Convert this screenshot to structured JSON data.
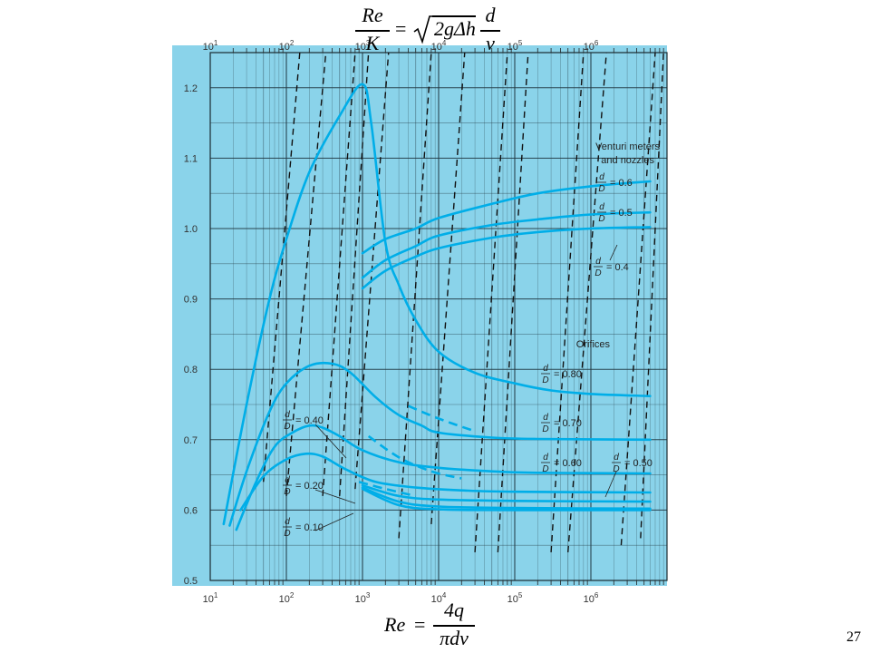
{
  "header_equation": {
    "lhs_num": "Re",
    "lhs_den": "K",
    "equals": "=",
    "sqrt_arg": "2gΔh",
    "rhs_num": "d",
    "rhs_den": "ν"
  },
  "footer_equation": {
    "lhs": "Re",
    "equals": "=",
    "num": "4q",
    "den": "πdν"
  },
  "slide_number": "27",
  "chart_data": {
    "type": "line",
    "x_scale": "log",
    "xlim": [
      10,
      10000000
    ],
    "ylim": [
      0.5,
      1.25
    ],
    "grid": true,
    "background_color": "#8ad3ea",
    "curve_color": "#00aee8",
    "bottom_axis_ticks": [
      {
        "base": "10",
        "exp": "1"
      },
      {
        "base": "10",
        "exp": "2"
      },
      {
        "base": "10",
        "exp": "3"
      },
      {
        "base": "10",
        "exp": "4"
      },
      {
        "base": "10",
        "exp": "5"
      },
      {
        "base": "10",
        "exp": "6"
      }
    ],
    "top_axis_ticks": [
      {
        "base": "10",
        "exp": "1"
      },
      {
        "base": "10",
        "exp": "2"
      },
      {
        "base": "10",
        "exp": "3"
      },
      {
        "base": "10",
        "exp": "4"
      },
      {
        "base": "10",
        "exp": "5"
      },
      {
        "base": "10",
        "exp": "6"
      }
    ],
    "y_ticks": [
      "0.5",
      "0.6",
      "0.7",
      "0.8",
      "0.9",
      "1.0",
      "1.1",
      "1.2"
    ],
    "annotations": {
      "venturi_title_line1": "Venturi meters",
      "venturi_title_line2": "and nozzles",
      "orifices_title": "Orifices",
      "ratio_d": "d",
      "ratio_D": "D"
    },
    "series": [
      {
        "name": "Venturi d/D = 0.6",
        "label_value": "= 0.6",
        "group": "venturi",
        "points": [
          [
            1000,
            0.965
          ],
          [
            2000,
            0.985
          ],
          [
            5000,
            1.0
          ],
          [
            10000,
            1.015
          ],
          [
            50000,
            1.035
          ],
          [
            200000,
            1.05
          ],
          [
            1000000,
            1.06
          ],
          [
            6000000,
            1.067
          ]
        ]
      },
      {
        "name": "Venturi d/D = 0.5",
        "label_value": "= 0.5",
        "group": "venturi",
        "points": [
          [
            1000,
            0.93
          ],
          [
            2000,
            0.955
          ],
          [
            5000,
            0.975
          ],
          [
            10000,
            0.99
          ],
          [
            50000,
            1.005
          ],
          [
            200000,
            1.013
          ],
          [
            1000000,
            1.02
          ],
          [
            6000000,
            1.023
          ]
        ]
      },
      {
        "name": "Venturi d/D = 0.4",
        "label_value": "= 0.4",
        "group": "venturi",
        "points": [
          [
            1000,
            0.915
          ],
          [
            2000,
            0.94
          ],
          [
            5000,
            0.96
          ],
          [
            10000,
            0.972
          ],
          [
            50000,
            0.987
          ],
          [
            200000,
            0.995
          ],
          [
            1000000,
            1.0
          ],
          [
            6000000,
            1.002
          ]
        ]
      },
      {
        "name": "Orifice d/D = 0.80",
        "label_value": "= 0.80",
        "group": "orifice",
        "points": [
          [
            15,
            0.58
          ],
          [
            30,
            0.75
          ],
          [
            60,
            0.9
          ],
          [
            100,
            0.985
          ],
          [
            200,
            1.08
          ],
          [
            500,
            1.16
          ],
          [
            1000,
            1.205
          ],
          [
            1300,
            1.15
          ],
          [
            2000,
            0.98
          ],
          [
            3000,
            0.92
          ],
          [
            5000,
            0.87
          ],
          [
            10000,
            0.825
          ],
          [
            30000,
            0.795
          ],
          [
            100000,
            0.78
          ],
          [
            300000,
            0.77
          ],
          [
            1000000,
            0.765
          ],
          [
            6000000,
            0.762
          ]
        ]
      },
      {
        "name": "Orifice d/D = 0.70",
        "label_value": "= 0.70",
        "group": "orifice",
        "points": [
          [
            18,
            0.578
          ],
          [
            30,
            0.655
          ],
          [
            60,
            0.74
          ],
          [
            100,
            0.78
          ],
          [
            200,
            0.805
          ],
          [
            400,
            0.808
          ],
          [
            700,
            0.795
          ],
          [
            1500,
            0.76
          ],
          [
            3000,
            0.735
          ],
          [
            6000,
            0.72
          ],
          [
            10000,
            0.71
          ],
          [
            50000,
            0.703
          ],
          [
            200000,
            0.701
          ],
          [
            6000000,
            0.7
          ]
        ]
      },
      {
        "name": "Orifice d/D = 0.60",
        "label_value": "= 0.60",
        "group": "orifice",
        "points": [
          [
            22,
            0.572
          ],
          [
            40,
            0.64
          ],
          [
            70,
            0.69
          ],
          [
            120,
            0.71
          ],
          [
            200,
            0.72
          ],
          [
            300,
            0.717
          ],
          [
            500,
            0.705
          ],
          [
            1000,
            0.685
          ],
          [
            3000,
            0.668
          ],
          [
            10000,
            0.66
          ],
          [
            50000,
            0.655
          ],
          [
            200000,
            0.653
          ],
          [
            6000000,
            0.652
          ]
        ]
      },
      {
        "name": "Orifice d/D = 0.50",
        "label_value": "= 0.50",
        "group": "orifice",
        "points": [
          [
            25,
            0.6
          ],
          [
            50,
            0.648
          ],
          [
            100,
            0.672
          ],
          [
            180,
            0.68
          ],
          [
            300,
            0.676
          ],
          [
            600,
            0.658
          ],
          [
            1500,
            0.64
          ],
          [
            5000,
            0.632
          ],
          [
            20000,
            0.628
          ],
          [
            100000,
            0.626
          ],
          [
            6000000,
            0.625
          ]
        ]
      },
      {
        "name": "Orifice d/D = 0.40",
        "label_value": "= 0.40",
        "group": "orifice",
        "points": [
          [
            1000,
            0.635
          ],
          [
            3000,
            0.62
          ],
          [
            10000,
            0.615
          ],
          [
            100000,
            0.613
          ],
          [
            6000000,
            0.612
          ]
        ]
      },
      {
        "name": "Orifice d/D = 0.20",
        "label_value": "= 0.20",
        "group": "orifice",
        "points": [
          [
            1000,
            0.632
          ],
          [
            3000,
            0.612
          ],
          [
            10000,
            0.605
          ],
          [
            100000,
            0.603
          ],
          [
            6000000,
            0.602
          ]
        ]
      },
      {
        "name": "Orifice d/D = 0.10",
        "label_value": "= 0.10",
        "group": "orifice",
        "points": [
          [
            1000,
            0.63
          ],
          [
            3000,
            0.607
          ],
          [
            10000,
            0.601
          ],
          [
            100000,
            0.6
          ],
          [
            6000000,
            0.6
          ]
        ]
      }
    ],
    "dashed_transitions": [
      {
        "name": "0.80 transition",
        "points": [
          [
            4000,
            0.748
          ],
          [
            10000,
            0.73
          ],
          [
            30000,
            0.712
          ]
        ]
      },
      {
        "name": "0.70 transition",
        "points": [
          [
            1200,
            0.705
          ],
          [
            3000,
            0.675
          ],
          [
            8000,
            0.655
          ],
          [
            20000,
            0.645
          ]
        ]
      },
      {
        "name": "0.60 transition",
        "points": [
          [
            900,
            0.64
          ],
          [
            2000,
            0.63
          ],
          [
            5000,
            0.62
          ]
        ]
      }
    ],
    "dashed_guide_lines": [
      [
        [
          50,
          0.64
        ],
        [
          150,
          1.25
        ]
      ],
      [
        [
          100,
          0.62
        ],
        [
          330,
          1.25
        ]
      ],
      [
        [
          300,
          0.62
        ],
        [
          800,
          1.25
        ]
      ],
      [
        [
          500,
          0.62
        ],
        [
          1200,
          1.25
        ]
      ],
      [
        [
          800,
          0.63
        ],
        [
          2200,
          1.25
        ]
      ],
      [
        [
          3000,
          0.56
        ],
        [
          8000,
          1.25
        ]
      ],
      [
        [
          8000,
          0.58
        ],
        [
          22000,
          1.25
        ]
      ],
      [
        [
          30000,
          0.54
        ],
        [
          80000,
          1.25
        ]
      ],
      [
        [
          60000,
          0.54
        ],
        [
          150000,
          1.25
        ]
      ],
      [
        [
          300000,
          0.54
        ],
        [
          800000,
          1.25
        ]
      ],
      [
        [
          500000,
          0.54
        ],
        [
          1600000,
          1.25
        ]
      ],
      [
        [
          2500000,
          0.55
        ],
        [
          7000000,
          1.25
        ]
      ],
      [
        [
          4500000,
          0.56
        ],
        [
          9000000,
          1.25
        ]
      ]
    ]
  }
}
